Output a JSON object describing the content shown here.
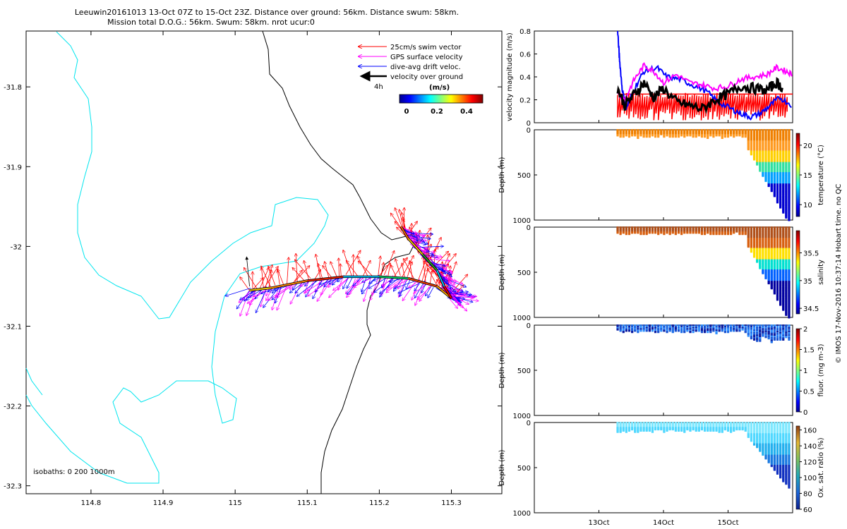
{
  "title_line1": "Leeuwin20161013 13-Oct 07Z to 15-Oct 23Z. Distance over ground: 56km. Distance swum: 58km.",
  "title_line2": "Mission total D.O.G.: 56km. Swum: 58km. nrot ucur:0",
  "credit": "© IMOS 17-Nov-2016 10:37:14 Hobart time. no QC",
  "map": {
    "xticks": [
      "114.8",
      "114.9",
      "115",
      "115.1",
      "115.2",
      "115.3"
    ],
    "yticks": [
      "-31.8",
      "-31.9",
      "-32",
      "-32.1",
      "-32.2",
      "-32.3"
    ],
    "isobath_label": "isobaths: 0   200  1000m",
    "legend": {
      "swim": "25cm/s swim vector",
      "gps": "GPS surface velocity",
      "dive": "dive-avg drift veloc.",
      "vog": "velocity over ground",
      "scale": "4h"
    },
    "colorbar": {
      "title": "(m/s)",
      "ticks": [
        "0",
        "0.2",
        "0.4"
      ]
    },
    "colors": {
      "coast": "#000000",
      "isobath_200": "#00e5ee",
      "swim": "#ff0000",
      "gps": "#ff00ff",
      "dive": "#0000ff",
      "vog": "#000000"
    }
  },
  "panels": {
    "velocity": {
      "ylabel": "velocity magnitude (m/s)",
      "yticks": [
        "0",
        "0.2",
        "0.4",
        "0.6",
        "0.8"
      ]
    },
    "temperature": {
      "ylabel": "Depth (m)",
      "cbar_label": "temperature (°C)",
      "cbar_ticks": [
        "10",
        "15",
        "20"
      ],
      "yticks": [
        "0",
        "500",
        "1000"
      ]
    },
    "salinity": {
      "ylabel": "Depth (m)",
      "cbar_label": "salinity",
      "cbar_ticks": [
        "34.5",
        "35",
        "35.5"
      ],
      "yticks": [
        "0",
        "500",
        "1000"
      ]
    },
    "fluor": {
      "ylabel": "Depth (m)",
      "cbar_label": "fluor. (mg m-3)",
      "cbar_ticks": [
        "0",
        "0.5",
        "1",
        "1.5",
        "2"
      ],
      "yticks": [
        "0",
        "500",
        "1000"
      ]
    },
    "oxygen": {
      "ylabel": "Depth (m)",
      "cbar_label": "Ox. sat. ratio (%)",
      "cbar_ticks": [
        "60",
        "80",
        "100",
        "120",
        "140",
        "160"
      ],
      "yticks": [
        "0",
        "500",
        "1000"
      ]
    },
    "xticks": [
      "13Oct",
      "14Oct",
      "15Oct"
    ]
  },
  "chart_data": [
    {
      "type": "scatter",
      "xlabel": "",
      "ylabel": "",
      "xlim": [
        114.71,
        115.37
      ],
      "ylim": [
        -32.31,
        -31.73
      ],
      "track": {
        "x": [
          115.02,
          115.05,
          115.1,
          115.15,
          115.2,
          115.24,
          115.28,
          115.3,
          115.29,
          115.28,
          115.26,
          115.24,
          115.23
        ],
        "y": [
          -32.055,
          -32.052,
          -32.043,
          -32.038,
          -32.038,
          -32.04,
          -32.05,
          -32.065,
          -32.05,
          -32.03,
          -32.01,
          -31.99,
          -31.975
        ]
      }
    },
    {
      "type": "line",
      "ylabel": "velocity magnitude (m/s)",
      "ylim": [
        0,
        0.8
      ],
      "xlim": [
        12.0,
        16.0
      ],
      "x_ticks": [
        "13Oct",
        "14Oct",
        "15Oct"
      ],
      "series": [
        {
          "color": "#0000ff",
          "x": [
            13.29,
            13.32,
            13.36,
            13.42,
            13.55,
            13.7,
            13.9,
            14.05,
            14.25,
            14.45,
            14.65,
            14.85,
            15.05,
            15.2,
            15.35,
            15.5,
            15.65,
            15.8,
            16.0
          ],
          "y": [
            0.8,
            0.55,
            0.3,
            0.12,
            0.3,
            0.45,
            0.48,
            0.4,
            0.38,
            0.33,
            0.28,
            0.18,
            0.12,
            0.08,
            0.05,
            0.08,
            0.15,
            0.22,
            0.15
          ]
        },
        {
          "color": "#ff00ff",
          "x": [
            13.29,
            13.4,
            13.55,
            13.7,
            13.85,
            14.0,
            14.2,
            14.4,
            14.6,
            14.8,
            15.0,
            15.2,
            15.4,
            15.6,
            15.75,
            15.9,
            16.0
          ],
          "y": [
            0.25,
            0.2,
            0.38,
            0.5,
            0.45,
            0.35,
            0.42,
            0.35,
            0.33,
            0.3,
            0.32,
            0.38,
            0.4,
            0.42,
            0.48,
            0.45,
            0.42
          ]
        },
        {
          "color": "#000000",
          "x": [
            13.29,
            13.4,
            13.55,
            13.7,
            13.85,
            14.0,
            14.2,
            14.4,
            14.6,
            14.8,
            15.0,
            15.2,
            15.4,
            15.6,
            15.75,
            15.85
          ],
          "y": [
            0.3,
            0.15,
            0.25,
            0.35,
            0.22,
            0.3,
            0.18,
            0.15,
            0.12,
            0.2,
            0.25,
            0.32,
            0.3,
            0.28,
            0.35,
            0.3
          ]
        },
        {
          "color": "#ff0000",
          "x": [
            13.29,
            16.0
          ],
          "y": [
            0.25,
            0.25
          ]
        }
      ]
    },
    {
      "type": "scatter",
      "ylabel": "Depth (m)",
      "colorbar_label": "temperature (°C)",
      "ylim": [
        1000,
        0
      ],
      "clim": [
        8,
        22
      ],
      "x_ticks": [
        "13Oct",
        "14Oct",
        "15Oct"
      ]
    },
    {
      "type": "scatter",
      "ylabel": "Depth (m)",
      "colorbar_label": "salinity",
      "ylim": [
        1000,
        0
      ],
      "clim": [
        34.4,
        35.9
      ],
      "x_ticks": [
        "13Oct",
        "14Oct",
        "15Oct"
      ]
    },
    {
      "type": "scatter",
      "ylabel": "Depth (m)",
      "colorbar_label": "fluor. (mg m-3)",
      "ylim": [
        1000,
        0
      ],
      "clim": [
        0,
        2
      ],
      "x_ticks": [
        "13Oct",
        "14Oct",
        "15Oct"
      ]
    },
    {
      "type": "scatter",
      "ylabel": "Depth (m)",
      "colorbar_label": "Ox. sat. ratio (%)",
      "ylim": [
        1000,
        0
      ],
      "clim": [
        60,
        165
      ],
      "x_ticks": [
        "13Oct",
        "14Oct",
        "15Oct"
      ]
    }
  ]
}
